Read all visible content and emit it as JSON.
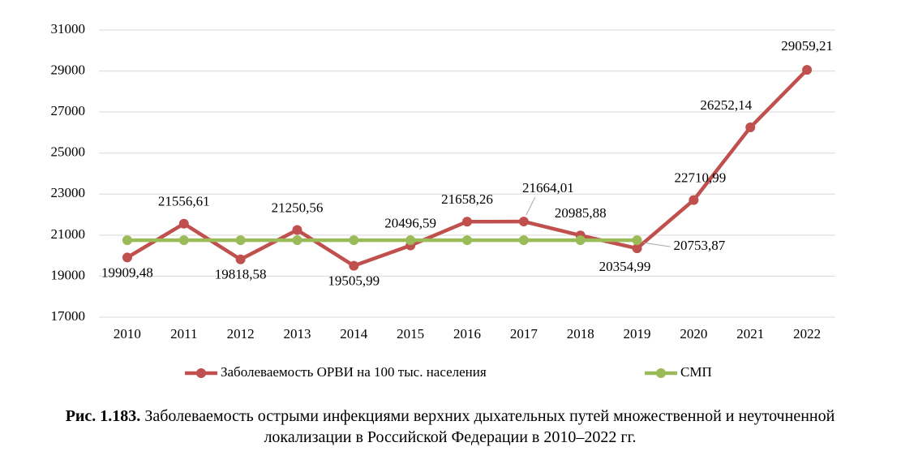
{
  "chart_data": {
    "type": "line",
    "categories": [
      "2010",
      "2011",
      "2012",
      "2013",
      "2014",
      "2015",
      "2016",
      "2017",
      "2018",
      "2019",
      "2020",
      "2021",
      "2022"
    ],
    "series": [
      {
        "name": "Заболеваемость ОРВИ на 100 тыс. населения",
        "color": "#c0504d",
        "values": [
          19909.48,
          21556.61,
          19818.58,
          21250.56,
          19505.99,
          20496.59,
          21658.26,
          21664.01,
          20985.88,
          20354.99,
          22710.99,
          26252.14,
          29059.21
        ],
        "value_labels": [
          "19909,48",
          "21556,61",
          "19818,58",
          "21250,56",
          "19505,99",
          "20496,59",
          "21658,26",
          "21664,01",
          "20985,88",
          "20354,99",
          "22710,99",
          "26252,14",
          "29059,21"
        ]
      },
      {
        "name": "СМП",
        "color": "#9bbb59",
        "values": [
          20753.87,
          20753.87,
          20753.87,
          20753.87,
          20753.87,
          20753.87,
          20753.87,
          20753.87,
          20753.87,
          20753.87,
          null,
          null,
          null
        ],
        "value_labels": [
          null,
          null,
          null,
          null,
          null,
          null,
          null,
          null,
          null,
          "20753,87",
          null,
          null,
          null
        ]
      }
    ],
    "ylim": [
      17000,
      31000
    ],
    "yticks": [
      17000,
      19000,
      21000,
      23000,
      25000,
      27000,
      29000,
      31000
    ],
    "grid": true,
    "legend": "bottom",
    "caption": {
      "label": "Рис. 1.183.",
      "text": "Заболеваемость острыми инфекциями верхних дыхательных путей множественной и неуточненной локализации в Российской Федерации в 2010–2022 гг."
    }
  }
}
